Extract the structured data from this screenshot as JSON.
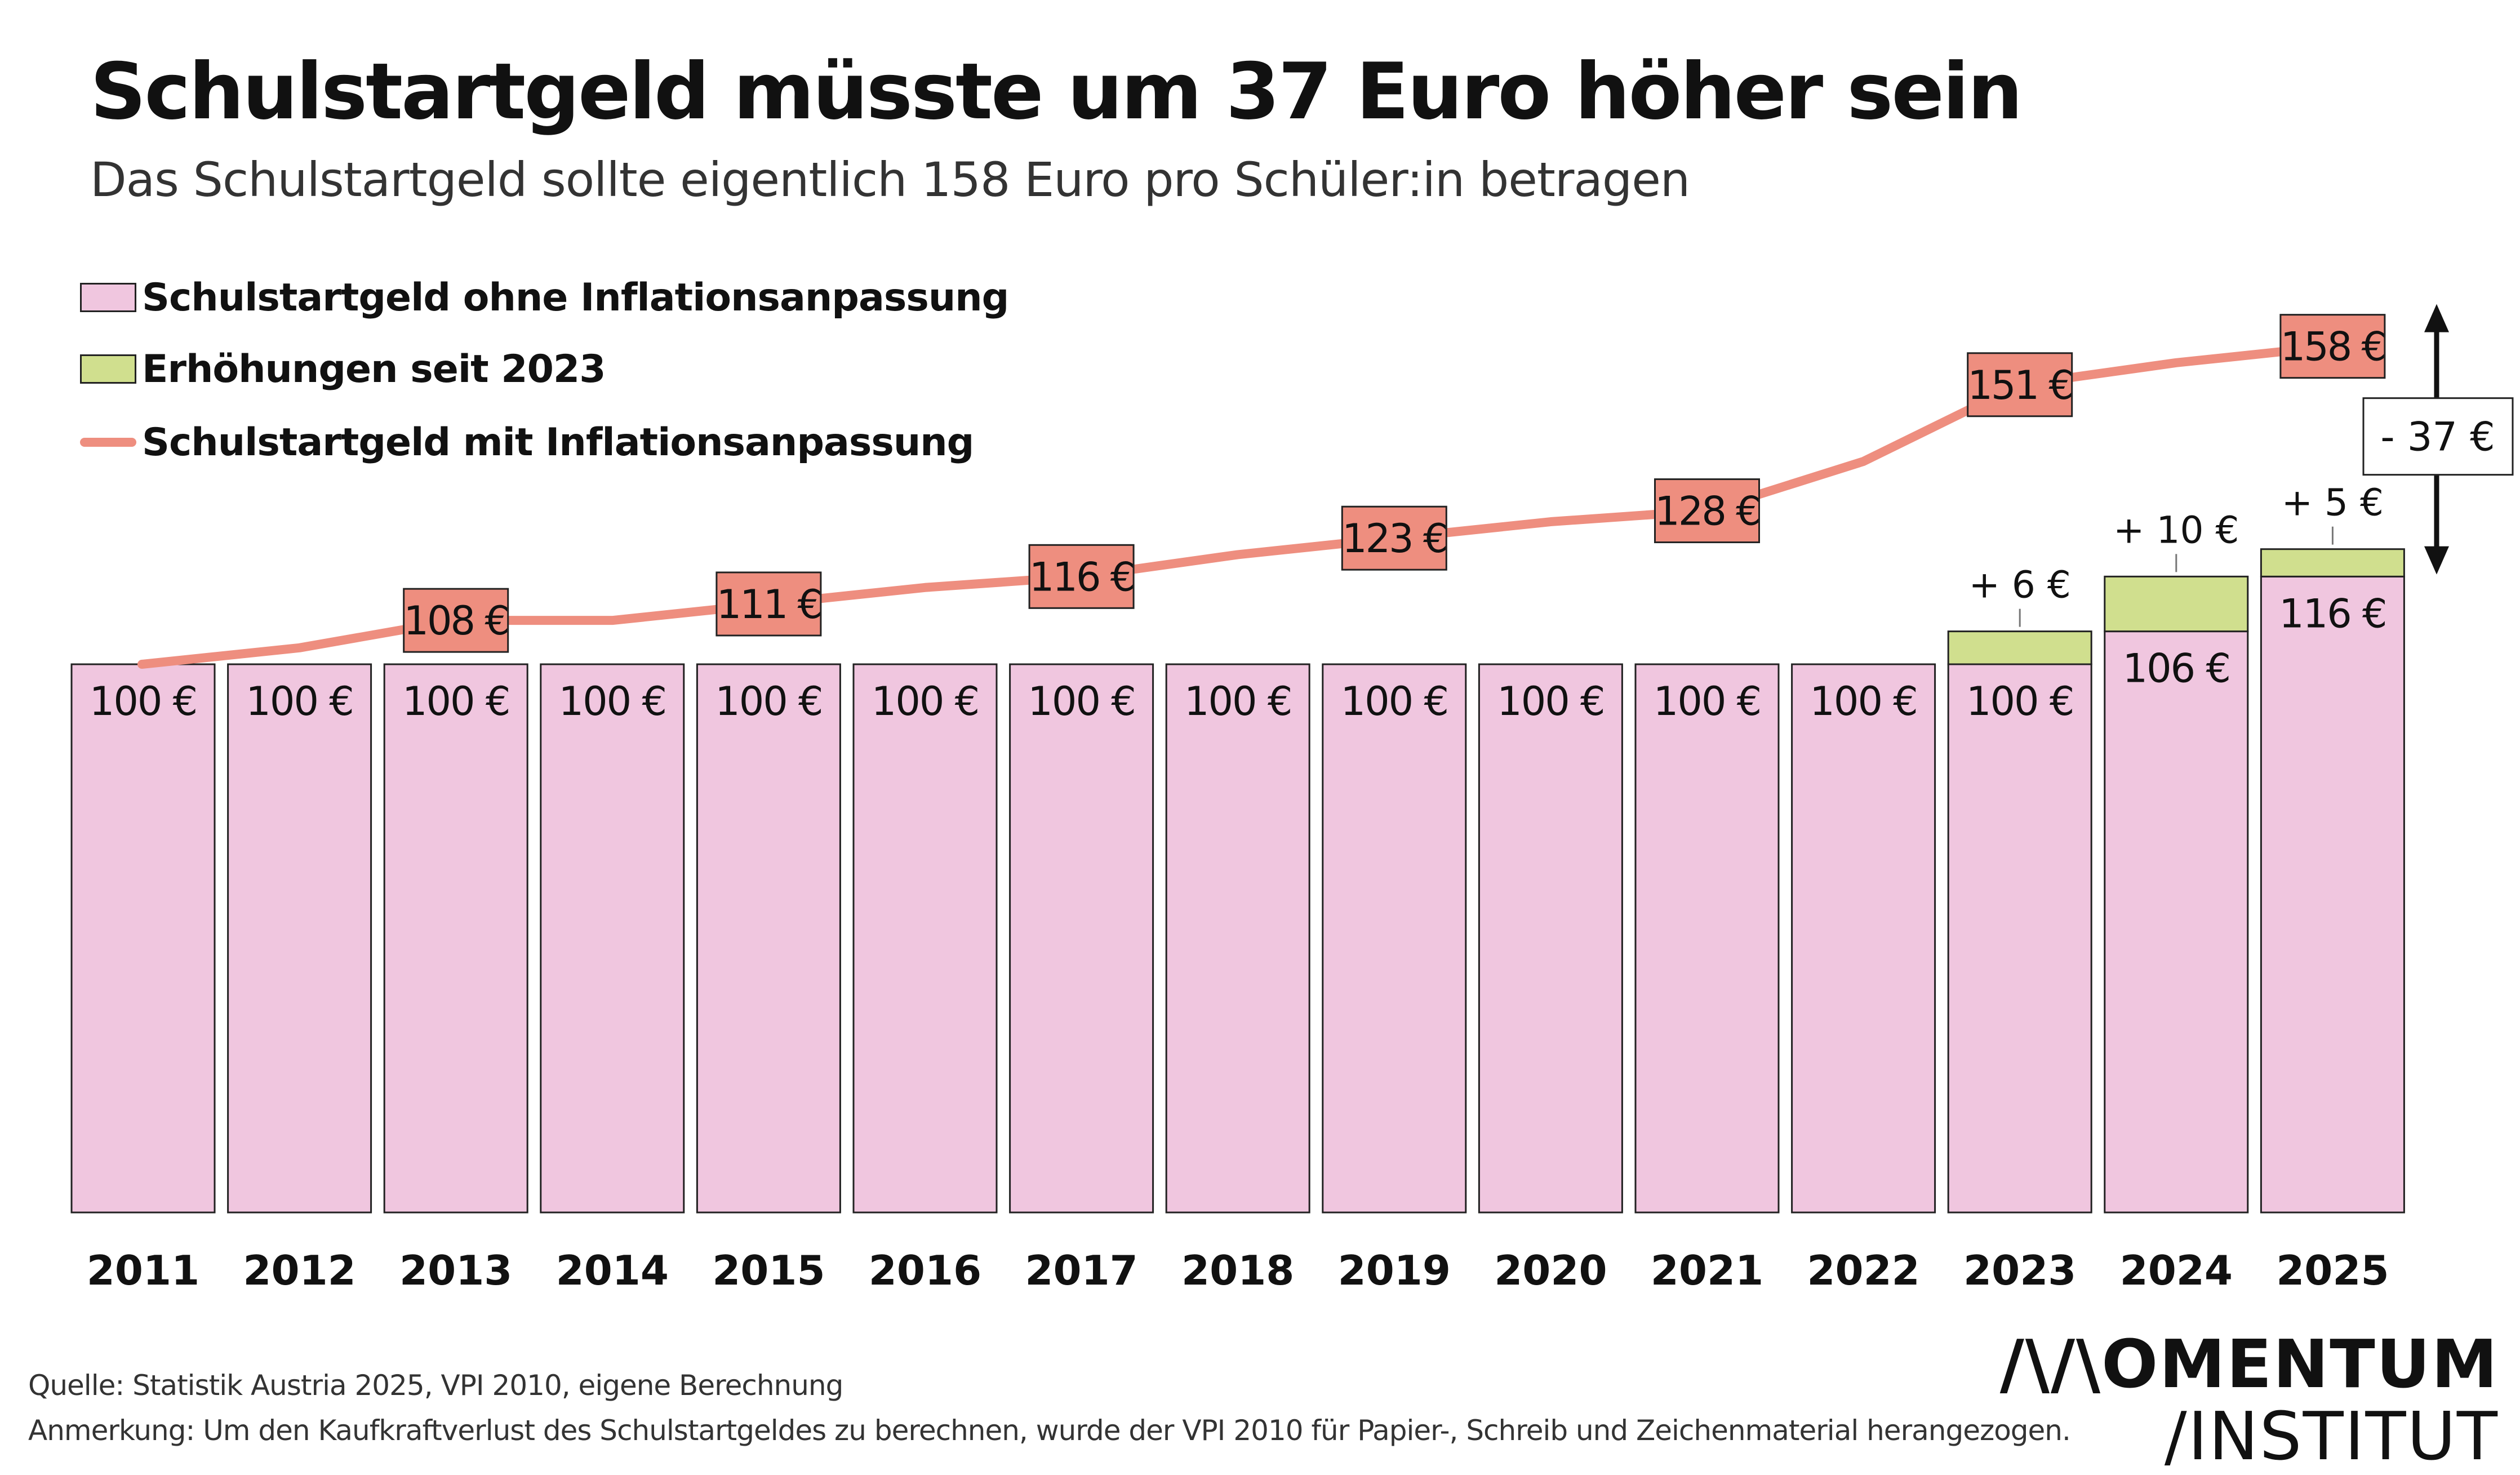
{
  "title": "Schulstartgeld müsste um 37 Euro höher sein",
  "subtitle": "Das Schulstartgeld sollte eigentlich 158 Euro pro Schüler:in betragen",
  "legend": [
    {
      "label": "Schulstartgeld ohne Inflationsanpassung",
      "kind": "box",
      "color": "#f0c6df"
    },
    {
      "label": "Erhöhungen seit 2023",
      "kind": "box",
      "color": "#d0df8e"
    },
    {
      "label": "Schulstartgeld mit Inflationsanpassung",
      "kind": "line",
      "color": "#ee8e7f"
    }
  ],
  "colors": {
    "base_bar": "#f0c6df",
    "increase_bar": "#d0df8e",
    "inflation_line": "#ee8e7f",
    "label_box": "#ee8e7f",
    "bar_border": "#222222"
  },
  "chart_data": {
    "type": "bar",
    "categories": [
      "2011",
      "2012",
      "2013",
      "2014",
      "2015",
      "2016",
      "2017",
      "2018",
      "2019",
      "2020",
      "2021",
      "2022",
      "2023",
      "2024",
      "2025"
    ],
    "series": [
      {
        "name": "Schulstartgeld ohne Inflationsanpassung",
        "values": [
          100,
          100,
          100,
          100,
          100,
          100,
          100,
          100,
          100,
          100,
          100,
          100,
          100,
          106,
          116
        ]
      },
      {
        "name": "Erhöhungen seit 2023",
        "values": [
          0,
          0,
          0,
          0,
          0,
          0,
          0,
          0,
          0,
          0,
          0,
          0,
          6,
          10,
          5
        ]
      },
      {
        "name": "Schulstartgeld mit Inflationsanpassung",
        "type": "line",
        "values": [
          100,
          103,
          108,
          108,
          111,
          114,
          116,
          120,
          123,
          126,
          128,
          137,
          151,
          155,
          158
        ]
      }
    ],
    "base_labels": [
      "100 €",
      "100 €",
      "100 €",
      "100 €",
      "100 €",
      "100 €",
      "100 €",
      "100 €",
      "100 €",
      "100 €",
      "100 €",
      "100 €",
      "100 €",
      "106 €",
      "116 €"
    ],
    "increase_labels": [
      {
        "year": "2023",
        "label": "+ 6 €"
      },
      {
        "year": "2024",
        "label": "+ 10 €"
      },
      {
        "year": "2025",
        "label": "+ 5 €"
      }
    ],
    "line_labels": [
      {
        "year": "2013",
        "label": "108 €"
      },
      {
        "year": "2015",
        "label": "111 €"
      },
      {
        "year": "2017",
        "label": "116 €"
      },
      {
        "year": "2019",
        "label": "123 €"
      },
      {
        "year": "2021",
        "label": "128 €"
      },
      {
        "year": "2023",
        "label": "151 €"
      },
      {
        "year": "2025",
        "label": "158 €"
      }
    ],
    "gap_label": "- 37 €",
    "ylim": [
      0,
      200
    ],
    "grid": false
  },
  "footnotes": {
    "source": "Quelle: Statistik Austria 2025, VPI 2010, eigene Berechnung",
    "note": "Anmerkung: Um den Kaufkraftverlust des Schulstartgeldes zu berechnen,  wurde der VPI 2010 für Papier-, Schreib und Zeichenmaterial herangezogen."
  },
  "logo": {
    "line1": "/\\/\\OMENTUM",
    "line2": "/INSTITUT"
  }
}
